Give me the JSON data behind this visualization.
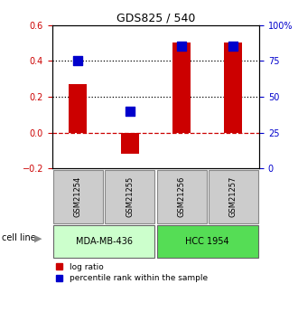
{
  "title": "GDS825 / 540",
  "samples": [
    "GSM21254",
    "GSM21255",
    "GSM21256",
    "GSM21257"
  ],
  "log_ratios": [
    0.27,
    -0.12,
    0.5,
    0.5
  ],
  "percentile_ranks": [
    75,
    40,
    85,
    85
  ],
  "left_ylim": [
    -0.2,
    0.6
  ],
  "right_ylim": [
    0,
    100
  ],
  "left_yticks": [
    -0.2,
    0.0,
    0.2,
    0.4,
    0.6
  ],
  "right_yticks": [
    0,
    25,
    50,
    75,
    100
  ],
  "right_yticklabels": [
    "0",
    "25",
    "50",
    "75",
    "100%"
  ],
  "bar_color": "#cc0000",
  "dot_color": "#0000cc",
  "hline_dotted_vals": [
    0.4,
    0.2
  ],
  "hline_dashed_val": 0.0,
  "cell_lines": [
    "MDA-MB-436",
    "HCC 1954"
  ],
  "cell_line_spans": [
    [
      0,
      2
    ],
    [
      2,
      4
    ]
  ],
  "cell_line_colors": [
    "#ccffcc",
    "#55dd55"
  ],
  "sample_box_color": "#cccccc",
  "bar_width": 0.35,
  "dot_size": 55,
  "left_tick_color": "#cc0000",
  "right_tick_color": "#0000cc",
  "background_color": "#ffffff"
}
